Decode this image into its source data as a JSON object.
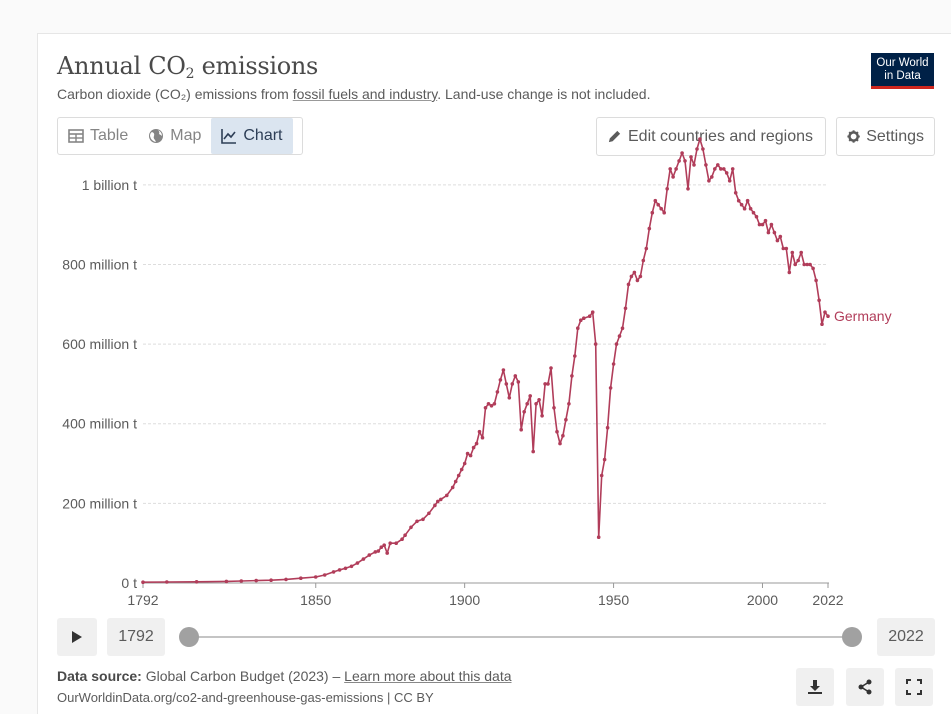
{
  "header": {
    "title_main": "Annual CO",
    "title_sub": "2",
    "title_end": " emissions",
    "subtitle_pre": "Carbon dioxide (CO₂) emissions from ",
    "subtitle_link": "fossil fuels and industry",
    "subtitle_post": ". Land-use change is not included.",
    "logo_line1": "Our World",
    "logo_line2": "in Data"
  },
  "tabs": [
    {
      "label": "Table",
      "icon": "table-icon"
    },
    {
      "label": "Map",
      "icon": "globe-icon"
    },
    {
      "label": "Chart",
      "icon": "line-chart-icon",
      "active": true
    }
  ],
  "toolbar": {
    "edit_label": "Edit countries and regions",
    "settings_label": "Settings"
  },
  "timeline": {
    "start_year": "1792",
    "end_year": "2022"
  },
  "footer": {
    "source_label": "Data source:",
    "source_text": " Global Carbon Budget (2023) – ",
    "learn_more": "Learn more about this data",
    "url_text": "OurWorldinData.org/co2-and-greenhouse-gas-emissions | CC BY"
  },
  "colors": {
    "series": "#b13d5a",
    "accent_bg": "#dbe5f0",
    "logo_bg": "#002147",
    "logo_bar": "#ce261e"
  },
  "chart_data": {
    "type": "line",
    "title": "Annual CO₂ emissions",
    "xlim": [
      1792,
      2022
    ],
    "ylim": [
      0,
      1100000000
    ],
    "y_ticks": [
      {
        "value": 0,
        "label": "0 t"
      },
      {
        "value": 200000000,
        "label": "200 million t"
      },
      {
        "value": 400000000,
        "label": "400 million t"
      },
      {
        "value": 600000000,
        "label": "600 million t"
      },
      {
        "value": 800000000,
        "label": "800 million t"
      },
      {
        "value": 1000000000,
        "label": "1 billion t"
      }
    ],
    "x_ticks": [
      {
        "value": 1792,
        "label": "1792"
      },
      {
        "value": 1850,
        "label": "1850"
      },
      {
        "value": 1900,
        "label": "1900"
      },
      {
        "value": 1950,
        "label": "1950"
      },
      {
        "value": 2000,
        "label": "2000"
      },
      {
        "value": 2022,
        "label": "2022"
      }
    ],
    "grid": true,
    "legend": "inline-end",
    "series": [
      {
        "name": "Germany",
        "color": "#b13d5a",
        "points": [
          [
            1792,
            2000000
          ],
          [
            1800,
            2500000
          ],
          [
            1810,
            3000000
          ],
          [
            1820,
            4000000
          ],
          [
            1825,
            5000000
          ],
          [
            1830,
            6000000
          ],
          [
            1835,
            7000000
          ],
          [
            1840,
            9000000
          ],
          [
            1845,
            12000000
          ],
          [
            1850,
            15000000
          ],
          [
            1853,
            20000000
          ],
          [
            1856,
            28000000
          ],
          [
            1858,
            33000000
          ],
          [
            1860,
            37000000
          ],
          [
            1862,
            42000000
          ],
          [
            1864,
            50000000
          ],
          [
            1866,
            60000000
          ],
          [
            1868,
            70000000
          ],
          [
            1870,
            78000000
          ],
          [
            1871,
            80000000
          ],
          [
            1872,
            90000000
          ],
          [
            1873,
            95000000
          ],
          [
            1874,
            75000000
          ],
          [
            1875,
            100000000
          ],
          [
            1877,
            100000000
          ],
          [
            1879,
            110000000
          ],
          [
            1880,
            120000000
          ],
          [
            1882,
            140000000
          ],
          [
            1884,
            155000000
          ],
          [
            1886,
            160000000
          ],
          [
            1888,
            175000000
          ],
          [
            1890,
            195000000
          ],
          [
            1891,
            205000000
          ],
          [
            1892,
            210000000
          ],
          [
            1894,
            220000000
          ],
          [
            1896,
            240000000
          ],
          [
            1897,
            255000000
          ],
          [
            1898,
            270000000
          ],
          [
            1899,
            285000000
          ],
          [
            1900,
            300000000
          ],
          [
            1901,
            325000000
          ],
          [
            1902,
            320000000
          ],
          [
            1903,
            340000000
          ],
          [
            1904,
            350000000
          ],
          [
            1905,
            380000000
          ],
          [
            1906,
            365000000
          ],
          [
            1907,
            440000000
          ],
          [
            1908,
            450000000
          ],
          [
            1909,
            445000000
          ],
          [
            1910,
            450000000
          ],
          [
            1911,
            480000000
          ],
          [
            1912,
            510000000
          ],
          [
            1913,
            535000000
          ],
          [
            1914,
            500000000
          ],
          [
            1915,
            465000000
          ],
          [
            1916,
            500000000
          ],
          [
            1917,
            520000000
          ],
          [
            1918,
            505000000
          ],
          [
            1919,
            385000000
          ],
          [
            1920,
            430000000
          ],
          [
            1921,
            450000000
          ],
          [
            1922,
            470000000
          ],
          [
            1923,
            330000000
          ],
          [
            1924,
            450000000
          ],
          [
            1925,
            460000000
          ],
          [
            1926,
            420000000
          ],
          [
            1927,
            500000000
          ],
          [
            1928,
            500000000
          ],
          [
            1929,
            540000000
          ],
          [
            1930,
            440000000
          ],
          [
            1931,
            380000000
          ],
          [
            1932,
            350000000
          ],
          [
            1933,
            370000000
          ],
          [
            1934,
            410000000
          ],
          [
            1935,
            450000000
          ],
          [
            1936,
            520000000
          ],
          [
            1937,
            570000000
          ],
          [
            1938,
            640000000
          ],
          [
            1939,
            660000000
          ],
          [
            1940,
            665000000
          ],
          [
            1942,
            670000000
          ],
          [
            1943,
            680000000
          ],
          [
            1944,
            600000000
          ],
          [
            1945,
            115000000
          ],
          [
            1946,
            270000000
          ],
          [
            1947,
            310000000
          ],
          [
            1948,
            390000000
          ],
          [
            1949,
            490000000
          ],
          [
            1950,
            550000000
          ],
          [
            1951,
            600000000
          ],
          [
            1952,
            620000000
          ],
          [
            1953,
            640000000
          ],
          [
            1954,
            690000000
          ],
          [
            1955,
            750000000
          ],
          [
            1956,
            770000000
          ],
          [
            1957,
            780000000
          ],
          [
            1958,
            760000000
          ],
          [
            1959,
            770000000
          ],
          [
            1960,
            810000000
          ],
          [
            1961,
            840000000
          ],
          [
            1962,
            890000000
          ],
          [
            1963,
            930000000
          ],
          [
            1964,
            960000000
          ],
          [
            1965,
            950000000
          ],
          [
            1966,
            940000000
          ],
          [
            1967,
            930000000
          ],
          [
            1968,
            990000000
          ],
          [
            1969,
            1040000000
          ],
          [
            1970,
            1020000000
          ],
          [
            1971,
            1040000000
          ],
          [
            1972,
            1060000000
          ],
          [
            1973,
            1080000000
          ],
          [
            1974,
            1060000000
          ],
          [
            1975,
            990000000
          ],
          [
            1976,
            1070000000
          ],
          [
            1977,
            1050000000
          ],
          [
            1978,
            1090000000
          ],
          [
            1979,
            1115000000
          ],
          [
            1980,
            1090000000
          ],
          [
            1981,
            1050000000
          ],
          [
            1982,
            1010000000
          ],
          [
            1983,
            1020000000
          ],
          [
            1984,
            1040000000
          ],
          [
            1985,
            1050000000
          ],
          [
            1986,
            1040000000
          ],
          [
            1987,
            1040000000
          ],
          [
            1988,
            1030000000
          ],
          [
            1989,
            1010000000
          ],
          [
            1990,
            1040000000
          ],
          [
            1991,
            980000000
          ],
          [
            1992,
            960000000
          ],
          [
            1993,
            950000000
          ],
          [
            1994,
            940000000
          ],
          [
            1995,
            960000000
          ],
          [
            1996,
            940000000
          ],
          [
            1997,
            930000000
          ],
          [
            1998,
            920000000
          ],
          [
            1999,
            900000000
          ],
          [
            2000,
            900000000
          ],
          [
            2001,
            910000000
          ],
          [
            2002,
            880000000
          ],
          [
            2003,
            900000000
          ],
          [
            2004,
            880000000
          ],
          [
            2005,
            860000000
          ],
          [
            2006,
            870000000
          ],
          [
            2007,
            840000000
          ],
          [
            2008,
            840000000
          ],
          [
            2009,
            780000000
          ],
          [
            2010,
            830000000
          ],
          [
            2011,
            800000000
          ],
          [
            2012,
            810000000
          ],
          [
            2013,
            830000000
          ],
          [
            2014,
            800000000
          ],
          [
            2015,
            800000000
          ],
          [
            2016,
            800000000
          ],
          [
            2017,
            790000000
          ],
          [
            2018,
            760000000
          ],
          [
            2019,
            710000000
          ],
          [
            2020,
            650000000
          ],
          [
            2021,
            680000000
          ],
          [
            2022,
            670000000
          ]
        ]
      }
    ]
  }
}
